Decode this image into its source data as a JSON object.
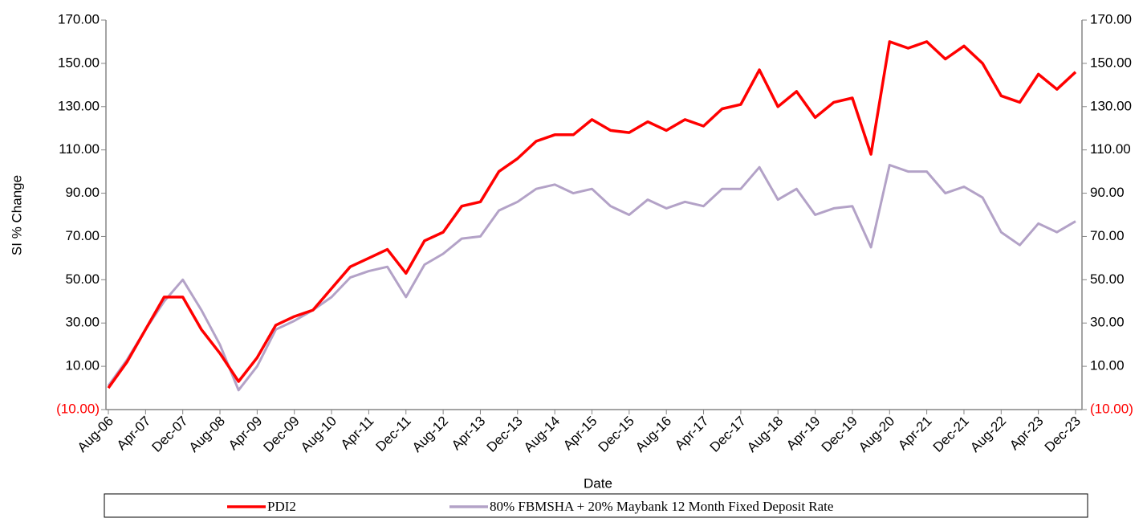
{
  "chart_data": {
    "type": "line",
    "y_label": "SI % Change",
    "x_label": "Date",
    "categories": [
      "Aug-06",
      null,
      "Apr-07",
      null,
      "Dec-07",
      null,
      "Aug-08",
      null,
      "Apr-09",
      null,
      "Dec-09",
      null,
      "Aug-10",
      null,
      "Apr-11",
      null,
      "Dec-11",
      null,
      "Aug-12",
      null,
      "Apr-13",
      null,
      "Dec-13",
      null,
      "Aug-14",
      null,
      "Apr-15",
      null,
      "Dec-15",
      null,
      "Aug-16",
      null,
      "Apr-17",
      null,
      "Dec-17",
      null,
      "Aug-18",
      null,
      "Apr-19",
      null,
      "Dec-19",
      null,
      "Aug-20",
      null,
      "Apr-21",
      null,
      "Dec-21",
      null,
      "Aug-22",
      null,
      "Apr-23",
      null,
      "Dec-23"
    ],
    "series": [
      {
        "name": "PDI2",
        "color": "#ff0000",
        "values": [
          0,
          12,
          27,
          42,
          42,
          27,
          16,
          3,
          14,
          29,
          33,
          36,
          46,
          56,
          60,
          64,
          53,
          68,
          72,
          84,
          86,
          100,
          106,
          114,
          117,
          117,
          124,
          119,
          118,
          123,
          119,
          124,
          121,
          129,
          131,
          147,
          130,
          137,
          125,
          132,
          134,
          108,
          160,
          157,
          160,
          152,
          158,
          150,
          135,
          132,
          145,
          138,
          146
        ]
      },
      {
        "name": "80% FBMSHA + 20% Maybank 12 Month Fixed Deposit Rate",
        "color": "#b3a2c7",
        "values": [
          1,
          13,
          27,
          40,
          50,
          36,
          20,
          -1,
          10,
          27,
          31,
          36,
          42,
          51,
          54,
          56,
          42,
          57,
          62,
          69,
          70,
          82,
          86,
          92,
          94,
          90,
          92,
          84,
          80,
          87,
          83,
          86,
          84,
          92,
          92,
          102,
          87,
          92,
          80,
          83,
          84,
          65,
          103,
          100,
          100,
          90,
          93,
          88,
          72,
          66,
          76,
          72,
          77
        ]
      }
    ],
    "ylim": [
      -10,
      170
    ],
    "yticks": [
      {
        "value": -10,
        "label": "(10.00)"
      },
      {
        "value": 10,
        "label": "10.00"
      },
      {
        "value": 30,
        "label": "30.00"
      },
      {
        "value": 50,
        "label": "50.00"
      },
      {
        "value": 70,
        "label": "70.00"
      },
      {
        "value": 90,
        "label": "90.00"
      },
      {
        "value": 110,
        "label": "110.00"
      },
      {
        "value": 130,
        "label": "130.00"
      },
      {
        "value": 150,
        "label": "150.00"
      },
      {
        "value": 170,
        "label": "170.00"
      }
    ],
    "y2lim": [
      -10,
      170
    ],
    "y2ticks": [
      {
        "value": -10,
        "label": "(10.00)"
      },
      {
        "value": 10,
        "label": "10.00"
      },
      {
        "value": 30,
        "label": "30.00"
      },
      {
        "value": 50,
        "label": "50.00"
      },
      {
        "value": 70,
        "label": "70.00"
      },
      {
        "value": 90,
        "label": "90.00"
      },
      {
        "value": 110,
        "label": "110.00"
      },
      {
        "value": 130,
        "label": "130.00"
      },
      {
        "value": 150,
        "label": "150.00"
      },
      {
        "value": 170,
        "label": "170.00"
      }
    ],
    "grid": false,
    "legend": "bottom"
  }
}
